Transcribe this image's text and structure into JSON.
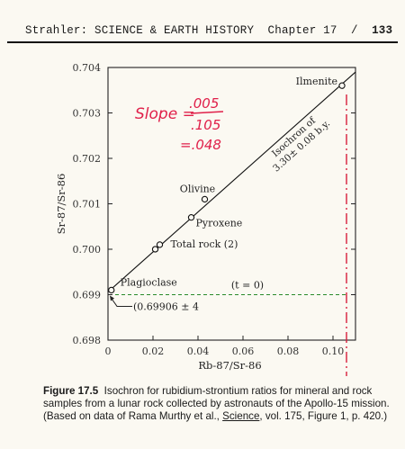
{
  "header": {
    "title": "Strahler: SCIENCE & EARTH HISTORY",
    "chapter": "Chapter 17",
    "separator": "/",
    "page_number": "133"
  },
  "handwritten_note": {
    "line1": "Slope =",
    "numerator": ".005",
    "denominator": ".105",
    "result": "=.048",
    "ink_color": "#e0204a"
  },
  "chart_data": {
    "type": "scatter",
    "xlabel": "Rb-87/Sr-86",
    "ylabel": "Sr-87/Sr-86",
    "xlim": [
      0,
      0.11
    ],
    "ylim": [
      0.698,
      0.704
    ],
    "x_ticks": [
      {
        "value": 0,
        "label": "0"
      },
      {
        "value": 0.02,
        "label": "0.02"
      },
      {
        "value": 0.04,
        "label": "0.04"
      },
      {
        "value": 0.06,
        "label": "0.06"
      },
      {
        "value": 0.08,
        "label": "0.08"
      },
      {
        "value": 0.1,
        "label": "0.10"
      }
    ],
    "y_ticks": [
      {
        "value": 0.698,
        "label": "0.698"
      },
      {
        "value": 0.699,
        "label": "0.699"
      },
      {
        "value": 0.7,
        "label": "0.700"
      },
      {
        "value": 0.701,
        "label": "0.701"
      },
      {
        "value": 0.702,
        "label": "0.702"
      },
      {
        "value": 0.703,
        "label": "0.703"
      },
      {
        "value": 0.704,
        "label": "0.704"
      }
    ],
    "points": [
      {
        "x": 0.0015,
        "y": 0.6991,
        "label": "Plagioclase"
      },
      {
        "x": 0.021,
        "y": 0.7,
        "label": ""
      },
      {
        "x": 0.023,
        "y": 0.7001,
        "label": "Total rock (2)"
      },
      {
        "x": 0.037,
        "y": 0.7007,
        "label": "Pyroxene"
      },
      {
        "x": 0.043,
        "y": 0.7011,
        "label": "Olivine"
      },
      {
        "x": 0.104,
        "y": 0.7036,
        "label": "Ilmenite"
      }
    ],
    "isochron": {
      "x": [
        0,
        0.11
      ],
      "y": [
        0.69906,
        0.7039
      ],
      "label_line1": "Isochron of",
      "label_line2": "3.30± 0.08 b.y."
    },
    "reference_line": {
      "y": 0.699,
      "label": "(t = 0)",
      "color": "#2a8a2a"
    },
    "marker_line": {
      "x": 0.106,
      "color": "#d81e3c"
    },
    "intercept_annotation": "(0.69906 ± 4"
  },
  "caption": {
    "figure_label": "Figure 17.5",
    "text": "Isochron for rubidium-strontium ratios for mineral and rock samples from a lunar rock collected by astronauts of the Apollo-15 mission. (Based on data of Rama Murthy et al., ",
    "source_journal": "Science",
    "source_tail": ", vol. 175, Figure 1, p. 420.)"
  }
}
